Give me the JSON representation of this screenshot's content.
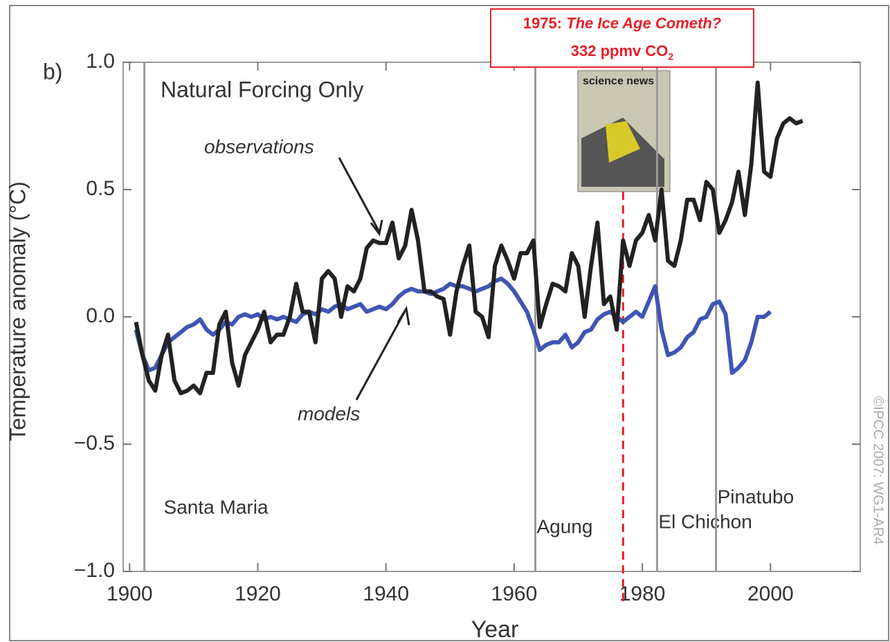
{
  "chart_data": {
    "type": "line",
    "panel_label": "b)",
    "title": "Natural Forcing Only",
    "x_label": "Year",
    "y_label": "Temperature anomaly (°C)",
    "credit": "©IPCC 2007: WG1-AR4",
    "xlim": [
      1899,
      2014
    ],
    "ylim": [
      -1,
      1
    ],
    "xticks": [
      1900,
      1920,
      1940,
      1960,
      1980,
      2000
    ],
    "yticks": [
      {
        "value": -1,
        "label": "−1.0"
      },
      {
        "value": -0.5,
        "label": "−0.5"
      },
      {
        "value": 0,
        "label": "0.0"
      },
      {
        "value": 0.5,
        "label": "0.5"
      },
      {
        "value": 1,
        "label": "1.0"
      }
    ],
    "x": [
      1901,
      1902,
      1903,
      1904,
      1905,
      1906,
      1907,
      1908,
      1909,
      1910,
      1911,
      1912,
      1913,
      1914,
      1915,
      1916,
      1917,
      1918,
      1919,
      1920,
      1921,
      1922,
      1923,
      1924,
      1925,
      1926,
      1927,
      1928,
      1929,
      1930,
      1931,
      1932,
      1933,
      1934,
      1935,
      1936,
      1937,
      1938,
      1939,
      1940,
      1941,
      1942,
      1943,
      1944,
      1945,
      1946,
      1947,
      1948,
      1949,
      1950,
      1951,
      1952,
      1953,
      1954,
      1955,
      1956,
      1957,
      1958,
      1959,
      1960,
      1961,
      1962,
      1963,
      1964,
      1965,
      1966,
      1967,
      1968,
      1969,
      1970,
      1971,
      1972,
      1973,
      1974,
      1975,
      1976,
      1977,
      1978,
      1979,
      1980,
      1981,
      1982,
      1983,
      1984,
      1985,
      1986,
      1987,
      1988,
      1989,
      1990,
      1991,
      1992,
      1993,
      1994,
      1995,
      1996,
      1997,
      1998,
      1999,
      2000,
      2001,
      2002,
      2003,
      2004,
      2005
    ],
    "series": [
      {
        "name": "models",
        "color": "#3f55b4",
        "values": [
          -0.05,
          -0.15,
          -0.21,
          -0.2,
          -0.15,
          -0.1,
          -0.08,
          -0.06,
          -0.04,
          -0.03,
          -0.01,
          -0.05,
          -0.07,
          -0.05,
          -0.02,
          -0.03,
          0.0,
          0.01,
          0.0,
          0.01,
          -0.01,
          0.0,
          -0.01,
          0.0,
          -0.01,
          -0.02,
          0.01,
          0.02,
          0.01,
          0.03,
          0.02,
          0.04,
          0.05,
          0.03,
          0.04,
          0.05,
          0.02,
          0.03,
          0.04,
          0.03,
          0.05,
          0.08,
          0.1,
          0.11,
          0.1,
          0.1,
          0.09,
          0.1,
          0.11,
          0.13,
          0.12,
          0.12,
          0.11,
          0.1,
          0.11,
          0.12,
          0.14,
          0.15,
          0.13,
          0.1,
          0.06,
          0.02,
          -0.05,
          -0.13,
          -0.11,
          -0.1,
          -0.1,
          -0.07,
          -0.12,
          -0.1,
          -0.06,
          -0.05,
          -0.01,
          0.01,
          0.02,
          0.0,
          -0.02,
          0.0,
          0.02,
          0.0,
          0.06,
          0.12,
          -0.05,
          -0.15,
          -0.14,
          -0.12,
          -0.08,
          -0.06,
          -0.01,
          0.0,
          0.05,
          0.06,
          0.01,
          -0.22,
          -0.2,
          -0.17,
          -0.1,
          0.0,
          0.0,
          0.02,
          null,
          null,
          null,
          null,
          null
        ]
      },
      {
        "name": "observations",
        "color": "#222222",
        "values": [
          -0.02,
          -0.15,
          -0.25,
          -0.29,
          -0.15,
          -0.07,
          -0.25,
          -0.3,
          -0.29,
          -0.27,
          -0.3,
          -0.22,
          -0.22,
          -0.03,
          0.02,
          -0.18,
          -0.27,
          -0.15,
          -0.1,
          -0.05,
          0.02,
          -0.1,
          -0.07,
          -0.07,
          0.0,
          0.13,
          0.02,
          0.02,
          -0.1,
          0.15,
          0.18,
          0.15,
          0.0,
          0.12,
          0.1,
          0.15,
          0.27,
          0.3,
          0.29,
          0.29,
          0.37,
          0.23,
          0.28,
          0.42,
          0.3,
          0.1,
          0.1,
          0.08,
          0.07,
          -0.07,
          0.1,
          0.2,
          0.28,
          0.02,
          0.0,
          -0.08,
          0.2,
          0.28,
          0.22,
          0.15,
          0.25,
          0.25,
          0.3,
          -0.04,
          0.05,
          0.13,
          0.12,
          0.1,
          0.25,
          0.2,
          0.0,
          0.2,
          0.37,
          0.05,
          0.08,
          -0.05,
          0.3,
          0.2,
          0.3,
          0.33,
          0.4,
          0.3,
          0.5,
          0.22,
          0.2,
          0.3,
          0.46,
          0.46,
          0.38,
          0.53,
          0.5,
          0.33,
          0.38,
          0.45,
          0.57,
          0.4,
          0.6,
          0.92,
          0.57,
          0.55,
          0.7,
          0.76,
          0.78,
          0.76,
          0.77
        ]
      }
    ],
    "volcanoes": [
      {
        "name": "Santa Maria",
        "year": 1902.3
      },
      {
        "name": "Agung",
        "year": 1963.3
      },
      {
        "name": "El Chichon",
        "year": 1982.3
      },
      {
        "name": "Pinatubo",
        "year": 1991.5
      }
    ],
    "cover_title": "science news",
    "marker_year": 1977,
    "annotation": {
      "year": "1975:",
      "headline": "The Ice Age Cometh?",
      "co2": "332 ppmv CO",
      "co2_subscript": "2"
    }
  }
}
